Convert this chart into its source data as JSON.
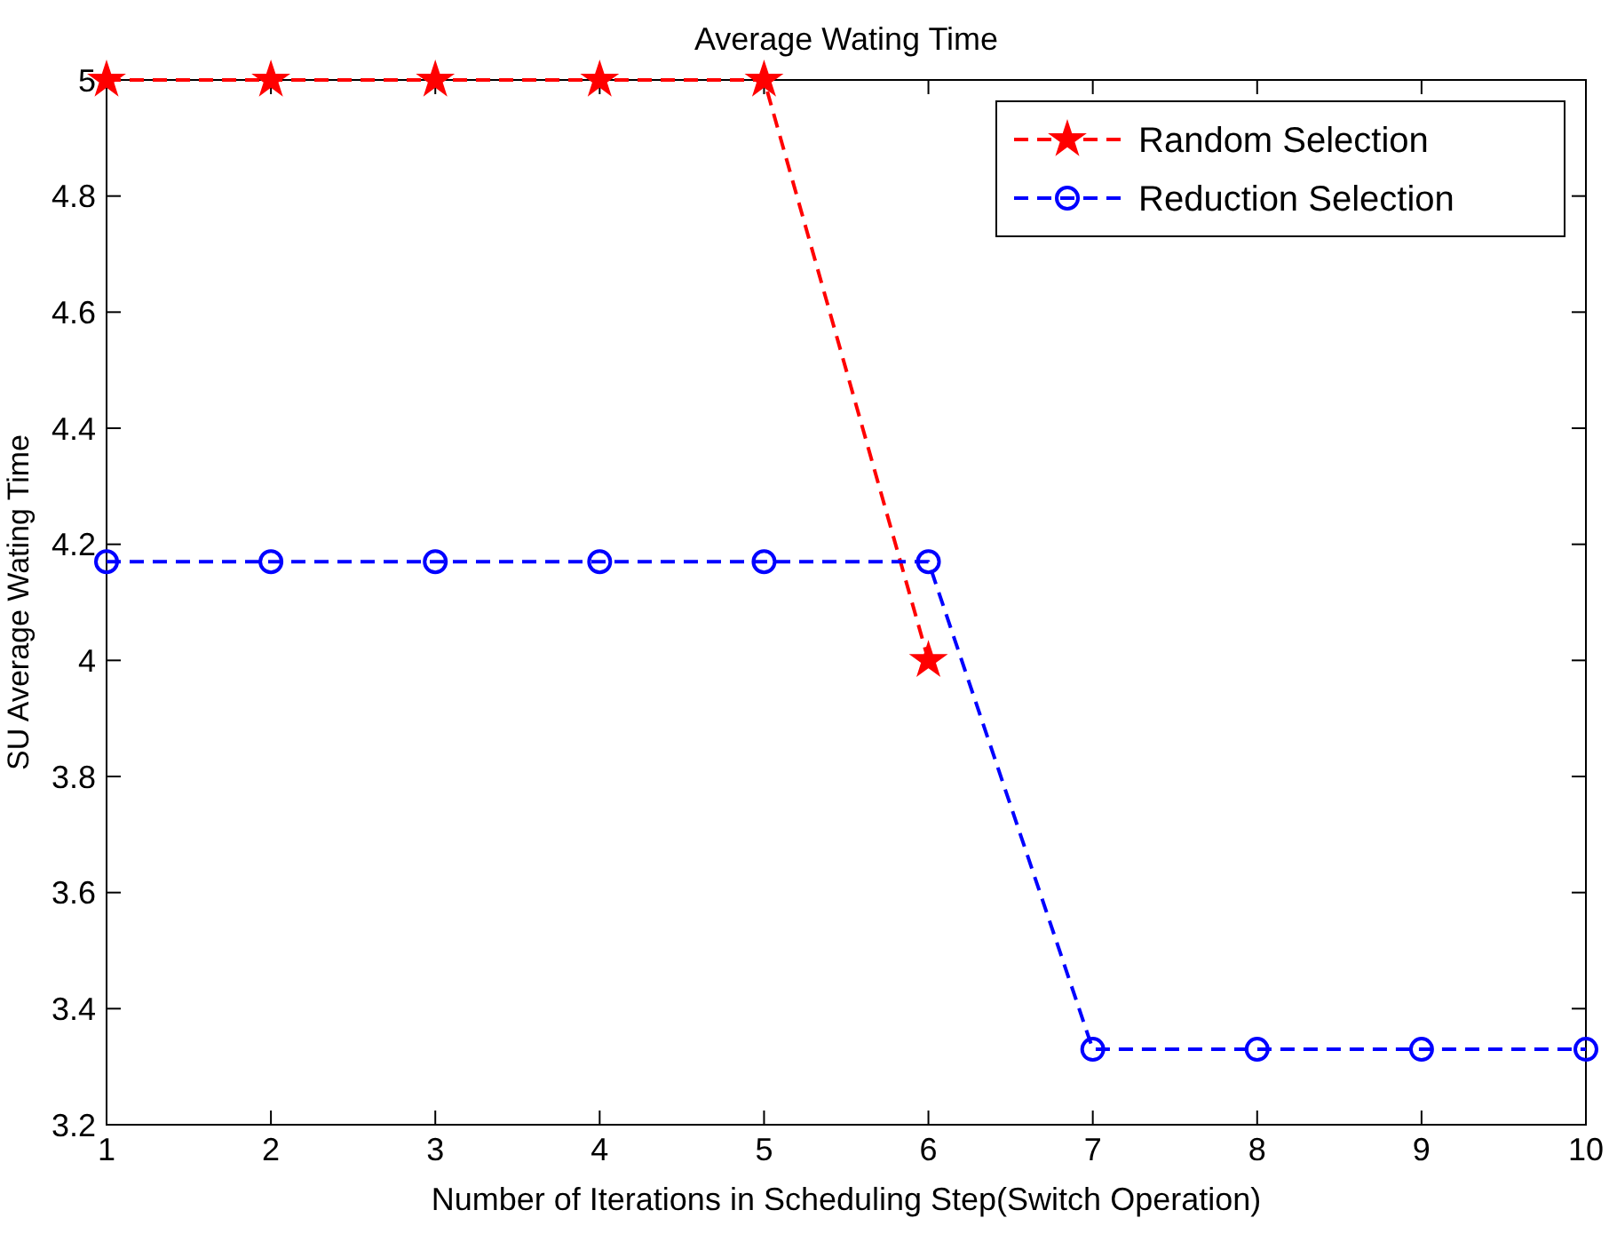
{
  "chart_data": {
    "type": "line",
    "title": "Average Wating Time",
    "xlabel": "Number of Iterations in Scheduling Step(Switch Operation)",
    "ylabel": "SU Average Wating Time",
    "xlim": [
      1,
      10
    ],
    "xticks": [
      1,
      2,
      3,
      4,
      5,
      6,
      7,
      8,
      9,
      10
    ],
    "ylim": [
      3.2,
      5
    ],
    "yticks": [
      3.2,
      3.4,
      3.6,
      3.8,
      4,
      4.2,
      4.4,
      4.6,
      4.8,
      5
    ],
    "legend": "top right",
    "line_style": "dashed",
    "grid": false,
    "series": [
      {
        "name": "Random Selection",
        "color": "#ff0000",
        "marker": "star",
        "x": [
          1,
          2,
          3,
          4,
          5,
          6
        ],
        "values": [
          5,
          5,
          5,
          5,
          5,
          4
        ]
      },
      {
        "name": "Reduction Selection",
        "color": "#0000ff",
        "marker": "circle",
        "x": [
          1,
          2,
          3,
          4,
          5,
          6,
          7,
          8,
          9,
          10
        ],
        "values": [
          4.17,
          4.17,
          4.17,
          4.17,
          4.17,
          4.17,
          3.33,
          3.33,
          3.33,
          3.33
        ]
      }
    ]
  }
}
